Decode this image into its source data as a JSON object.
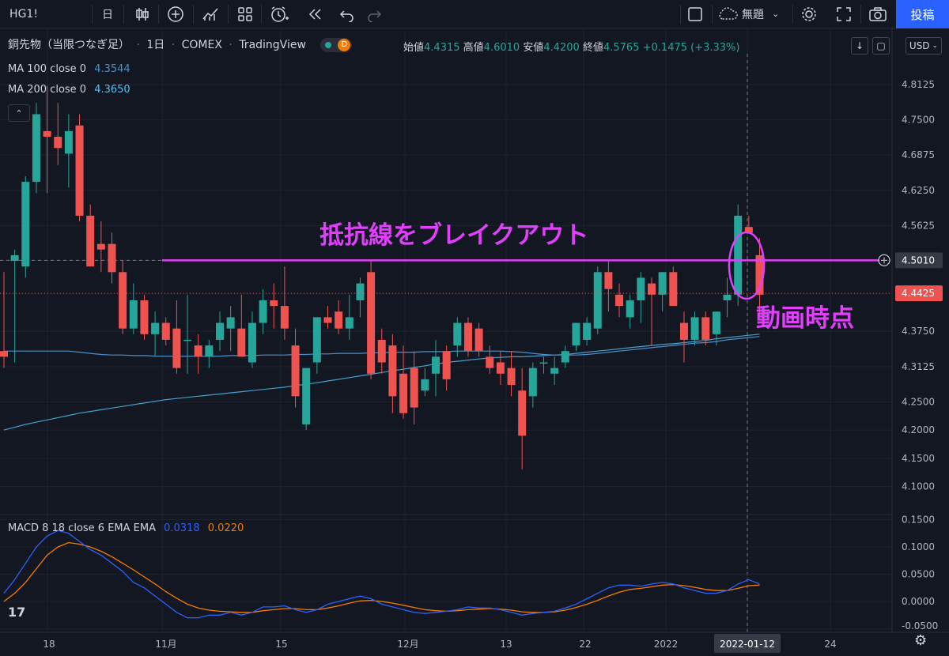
{
  "toolbar": {
    "symbol": "HG1!",
    "interval": "日",
    "layout_name": "無題",
    "post_label": "投稿"
  },
  "legend": {
    "symbol_name": "銅先物（当限つなぎ足）",
    "interval": "1日",
    "exchange": "COMEX",
    "source": "TradingView",
    "badge": "D",
    "open_label": "始値",
    "open": "4.4315",
    "high_label": "高値",
    "high": "4.6010",
    "low_label": "安値",
    "low": "4.4200",
    "close_label": "終値",
    "close": "4.5765",
    "change": "+0.1475 (+3.33%)",
    "currency": "USD"
  },
  "indicators": {
    "ma100_label": "MA 100 close 0",
    "ma100_value": "4.3544",
    "ma200_label": "MA 200 close 0",
    "ma200_value": "4.3650",
    "macd_label": "MACD 8 18 close 6 EMA EMA",
    "macd_value": "0.0318",
    "signal_value": "0.0220"
  },
  "annotations": {
    "breakout_text": "抵抗線をブレイクアウト",
    "current_text": "動画時点"
  },
  "colors": {
    "up": "#26a69a",
    "down": "#ef5350",
    "ma": "#4a90c8",
    "macd": "#2962ff",
    "signal": "#f57c00",
    "annotation": "#e040fb",
    "accent": "#2962ff"
  },
  "icons": [
    "candles-icon",
    "plus-circle-icon",
    "indicators-icon",
    "templates-icon",
    "alert-icon",
    "replay-icon",
    "undo-icon",
    "redo-icon",
    "fullscreen-icon",
    "cloud-icon",
    "gear-icon",
    "camera-icon"
  ],
  "chart_data": {
    "type": "candlestick",
    "price_axis_ticks": [
      "4.8125",
      "4.7500",
      "4.6875",
      "4.6250",
      "4.5625",
      "4.5010",
      "4.4425",
      "4.3750",
      "4.3125",
      "4.2500",
      "4.2000",
      "4.1500",
      "4.1000"
    ],
    "macd_axis_ticks": [
      "0.1500",
      "0.1000",
      "0.0500",
      "0.0000",
      "-0.0500"
    ],
    "time_labels": [
      "18",
      "11月",
      "15",
      "12月",
      "13",
      "22",
      "2022",
      "2022-01-12",
      "24"
    ],
    "resistance_level": 4.501,
    "last_price": 4.4425,
    "ylim": [
      4.07,
      4.85
    ],
    "candles": [
      {
        "o": 4.34,
        "h": 4.48,
        "l": 4.31,
        "c": 4.33
      },
      {
        "o": 4.5,
        "h": 4.52,
        "l": 4.32,
        "c": 4.51
      },
      {
        "o": 4.49,
        "h": 4.65,
        "l": 4.47,
        "c": 4.64
      },
      {
        "o": 4.64,
        "h": 4.78,
        "l": 4.62,
        "c": 4.76
      },
      {
        "o": 4.73,
        "h": 4.81,
        "l": 4.62,
        "c": 4.72
      },
      {
        "o": 4.72,
        "h": 4.78,
        "l": 4.67,
        "c": 4.7
      },
      {
        "o": 4.69,
        "h": 4.76,
        "l": 4.63,
        "c": 4.73
      },
      {
        "o": 4.74,
        "h": 4.76,
        "l": 4.57,
        "c": 4.58
      },
      {
        "o": 4.58,
        "h": 4.6,
        "l": 4.49,
        "c": 4.49
      },
      {
        "o": 4.53,
        "h": 4.57,
        "l": 4.48,
        "c": 4.52
      },
      {
        "o": 4.53,
        "h": 4.55,
        "l": 4.46,
        "c": 4.48
      },
      {
        "o": 4.48,
        "h": 4.5,
        "l": 4.37,
        "c": 4.38
      },
      {
        "o": 4.38,
        "h": 4.46,
        "l": 4.37,
        "c": 4.43
      },
      {
        "o": 4.43,
        "h": 4.44,
        "l": 4.36,
        "c": 4.37
      },
      {
        "o": 4.37,
        "h": 4.41,
        "l": 4.33,
        "c": 4.39
      },
      {
        "o": 4.39,
        "h": 4.4,
        "l": 4.35,
        "c": 4.36
      },
      {
        "o": 4.38,
        "h": 4.43,
        "l": 4.3,
        "c": 4.31
      },
      {
        "o": 4.36,
        "h": 4.44,
        "l": 4.3,
        "c": 4.36
      },
      {
        "o": 4.35,
        "h": 4.37,
        "l": 4.3,
        "c": 4.33
      },
      {
        "o": 4.33,
        "h": 4.36,
        "l": 4.31,
        "c": 4.35
      },
      {
        "o": 4.36,
        "h": 4.41,
        "l": 4.34,
        "c": 4.39
      },
      {
        "o": 4.38,
        "h": 4.42,
        "l": 4.34,
        "c": 4.4
      },
      {
        "o": 4.38,
        "h": 4.44,
        "l": 4.33,
        "c": 4.33
      },
      {
        "o": 4.32,
        "h": 4.41,
        "l": 4.31,
        "c": 4.39
      },
      {
        "o": 4.39,
        "h": 4.45,
        "l": 4.37,
        "c": 4.43
      },
      {
        "o": 4.43,
        "h": 4.46,
        "l": 4.38,
        "c": 4.42
      },
      {
        "o": 4.42,
        "h": 4.49,
        "l": 4.36,
        "c": 4.38
      },
      {
        "o": 4.35,
        "h": 4.38,
        "l": 4.24,
        "c": 4.26
      },
      {
        "o": 4.21,
        "h": 4.31,
        "l": 4.2,
        "c": 4.31
      },
      {
        "o": 4.32,
        "h": 4.4,
        "l": 4.3,
        "c": 4.4
      },
      {
        "o": 4.4,
        "h": 4.42,
        "l": 4.38,
        "c": 4.39
      },
      {
        "o": 4.41,
        "h": 4.43,
        "l": 4.37,
        "c": 4.38
      },
      {
        "o": 4.38,
        "h": 4.44,
        "l": 4.36,
        "c": 4.4
      },
      {
        "o": 4.43,
        "h": 4.47,
        "l": 4.4,
        "c": 4.46
      },
      {
        "o": 4.48,
        "h": 4.5,
        "l": 4.29,
        "c": 4.3
      },
      {
        "o": 4.36,
        "h": 4.38,
        "l": 4.3,
        "c": 4.32
      },
      {
        "o": 4.35,
        "h": 4.37,
        "l": 4.23,
        "c": 4.26
      },
      {
        "o": 4.3,
        "h": 4.35,
        "l": 4.22,
        "c": 4.23
      },
      {
        "o": 4.31,
        "h": 4.34,
        "l": 4.21,
        "c": 4.24
      },
      {
        "o": 4.27,
        "h": 4.31,
        "l": 4.26,
        "c": 4.29
      },
      {
        "o": 4.3,
        "h": 4.36,
        "l": 4.26,
        "c": 4.33
      },
      {
        "o": 4.34,
        "h": 4.35,
        "l": 4.27,
        "c": 4.29
      },
      {
        "o": 4.35,
        "h": 4.4,
        "l": 4.33,
        "c": 4.39
      },
      {
        "o": 4.39,
        "h": 4.4,
        "l": 4.33,
        "c": 4.34
      },
      {
        "o": 4.38,
        "h": 4.39,
        "l": 4.33,
        "c": 4.34
      },
      {
        "o": 4.33,
        "h": 4.35,
        "l": 4.3,
        "c": 4.31
      },
      {
        "o": 4.32,
        "h": 4.34,
        "l": 4.28,
        "c": 4.3
      },
      {
        "o": 4.31,
        "h": 4.34,
        "l": 4.26,
        "c": 4.28
      },
      {
        "o": 4.27,
        "h": 4.31,
        "l": 4.13,
        "c": 4.19
      },
      {
        "o": 4.26,
        "h": 4.32,
        "l": 4.24,
        "c": 4.31
      },
      {
        "o": 4.32,
        "h": 4.33,
        "l": 4.3,
        "c": 4.32
      },
      {
        "o": 4.3,
        "h": 4.33,
        "l": 4.28,
        "c": 4.31
      },
      {
        "o": 4.32,
        "h": 4.35,
        "l": 4.31,
        "c": 4.34
      },
      {
        "o": 4.35,
        "h": 4.39,
        "l": 4.34,
        "c": 4.39
      },
      {
        "o": 4.36,
        "h": 4.4,
        "l": 4.35,
        "c": 4.39
      },
      {
        "o": 4.38,
        "h": 4.49,
        "l": 4.37,
        "c": 4.48
      },
      {
        "o": 4.48,
        "h": 4.5,
        "l": 4.41,
        "c": 4.45
      },
      {
        "o": 4.44,
        "h": 4.46,
        "l": 4.4,
        "c": 4.42
      },
      {
        "o": 4.4,
        "h": 4.44,
        "l": 4.38,
        "c": 4.43
      },
      {
        "o": 4.43,
        "h": 4.48,
        "l": 4.39,
        "c": 4.47
      },
      {
        "o": 4.46,
        "h": 4.47,
        "l": 4.35,
        "c": 4.44
      },
      {
        "o": 4.44,
        "h": 4.48,
        "l": 4.41,
        "c": 4.48
      },
      {
        "o": 4.48,
        "h": 4.49,
        "l": 4.42,
        "c": 4.42
      },
      {
        "o": 4.39,
        "h": 4.41,
        "l": 4.32,
        "c": 4.36
      },
      {
        "o": 4.36,
        "h": 4.41,
        "l": 4.35,
        "c": 4.4
      },
      {
        "o": 4.4,
        "h": 4.41,
        "l": 4.35,
        "c": 4.36
      },
      {
        "o": 4.37,
        "h": 4.41,
        "l": 4.35,
        "c": 4.41
      },
      {
        "o": 4.43,
        "h": 4.47,
        "l": 4.4,
        "c": 4.44
      },
      {
        "o": 4.44,
        "h": 4.6,
        "l": 4.42,
        "c": 4.58
      },
      {
        "o": 4.56,
        "h": 4.58,
        "l": 4.55,
        "c": 4.55
      },
      {
        "o": 4.51,
        "h": 4.54,
        "l": 4.4,
        "c": 4.44
      }
    ],
    "ma_line": [
      4.34,
      4.34,
      4.34,
      4.34,
      4.34,
      4.34,
      4.34,
      4.338,
      4.336,
      4.334,
      4.333,
      4.333,
      4.332,
      4.332,
      4.331,
      4.331,
      4.331,
      4.331,
      4.331,
      4.331,
      4.331,
      4.332,
      4.332,
      4.332,
      4.333,
      4.333,
      4.333,
      4.334,
      4.334,
      4.335,
      4.335,
      4.336,
      4.336,
      4.336,
      4.337,
      4.337,
      4.338,
      4.338,
      4.338,
      4.339,
      4.339,
      4.339,
      4.34,
      4.34,
      4.34,
      4.34,
      4.34,
      4.339,
      4.338,
      4.336,
      4.334,
      4.333,
      4.333,
      4.333,
      4.334,
      4.336,
      4.338,
      4.34,
      4.342,
      4.344,
      4.346,
      4.348,
      4.35,
      4.352,
      4.354,
      4.355,
      4.357,
      4.36,
      4.362,
      4.364,
      4.366
    ],
    "ma_line2": [
      4.2,
      4.205,
      4.21,
      4.214,
      4.218,
      4.222,
      4.226,
      4.23,
      4.233,
      4.236,
      4.239,
      4.242,
      4.245,
      4.248,
      4.251,
      4.254,
      4.256,
      4.258,
      4.26,
      4.262,
      4.264,
      4.266,
      4.268,
      4.27,
      4.272,
      4.274,
      4.276,
      4.279,
      4.281,
      4.284,
      4.287,
      4.29,
      4.293,
      4.296,
      4.299,
      4.302,
      4.305,
      4.308,
      4.311,
      4.314,
      4.317,
      4.32,
      4.322,
      4.324,
      4.326,
      4.328,
      4.329,
      4.33,
      4.33,
      4.331,
      4.332,
      4.333,
      4.334,
      4.336,
      4.338,
      4.34,
      4.342,
      4.344,
      4.346,
      4.348,
      4.35,
      4.352,
      4.353,
      4.355,
      4.357,
      4.359,
      4.362,
      4.364,
      4.366,
      4.368,
      4.37
    ],
    "macd": {
      "ylim": [
        -0.06,
        0.16
      ],
      "macd_line": [
        0.015,
        0.04,
        0.07,
        0.1,
        0.12,
        0.13,
        0.125,
        0.11,
        0.095,
        0.085,
        0.07,
        0.055,
        0.035,
        0.025,
        0.01,
        -0.005,
        -0.02,
        -0.03,
        -0.03,
        -0.025,
        -0.025,
        -0.02,
        -0.025,
        -0.02,
        -0.01,
        -0.01,
        -0.008,
        -0.015,
        -0.02,
        -0.015,
        -0.005,
        0.0,
        0.005,
        0.01,
        0.005,
        -0.005,
        -0.01,
        -0.015,
        -0.02,
        -0.022,
        -0.02,
        -0.018,
        -0.015,
        -0.01,
        -0.012,
        -0.012,
        -0.015,
        -0.02,
        -0.025,
        -0.022,
        -0.02,
        -0.018,
        -0.012,
        -0.005,
        0.005,
        0.015,
        0.025,
        0.03,
        0.03,
        0.028,
        0.032,
        0.035,
        0.032,
        0.025,
        0.02,
        0.015,
        0.015,
        0.02,
        0.032,
        0.04,
        0.032
      ],
      "signal_line": [
        0.0,
        0.015,
        0.035,
        0.06,
        0.085,
        0.1,
        0.108,
        0.105,
        0.1,
        0.092,
        0.082,
        0.07,
        0.058,
        0.045,
        0.032,
        0.018,
        0.006,
        -0.005,
        -0.012,
        -0.016,
        -0.018,
        -0.019,
        -0.02,
        -0.02,
        -0.017,
        -0.015,
        -0.013,
        -0.013,
        -0.015,
        -0.015,
        -0.012,
        -0.008,
        -0.003,
        0.001,
        0.002,
        0.0,
        -0.003,
        -0.007,
        -0.011,
        -0.015,
        -0.017,
        -0.018,
        -0.017,
        -0.015,
        -0.014,
        -0.013,
        -0.014,
        -0.016,
        -0.019,
        -0.02,
        -0.02,
        -0.019,
        -0.016,
        -0.011,
        -0.005,
        0.002,
        0.01,
        0.017,
        0.022,
        0.024,
        0.027,
        0.03,
        0.031,
        0.029,
        0.026,
        0.022,
        0.02,
        0.02,
        0.024,
        0.029,
        0.03
      ]
    }
  }
}
